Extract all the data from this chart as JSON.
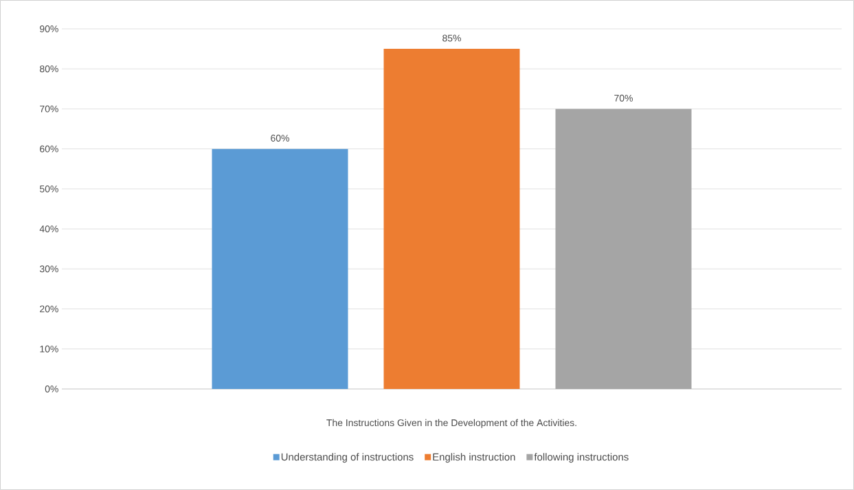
{
  "chart_data": {
    "type": "bar",
    "categories": [
      null
    ],
    "xlabel": "The Instructions Given in the Development of the Activities.",
    "series": [
      {
        "name": "Understanding of instructions",
        "color": "#5b9bd5",
        "values": [
          60
        ],
        "value_labels": [
          "60%"
        ]
      },
      {
        "name": "English instruction",
        "color": "#ed7d31",
        "values": [
          85
        ],
        "value_labels": [
          "85%"
        ]
      },
      {
        "name": "following instructions",
        "color": "#a5a5a5",
        "values": [
          70
        ],
        "value_labels": [
          "70%"
        ]
      }
    ],
    "ylim": [
      0,
      90
    ],
    "yticks": [
      {
        "value": 0,
        "label": "0%"
      },
      {
        "value": 10,
        "label": "10%"
      },
      {
        "value": 20,
        "label": "20%"
      },
      {
        "value": 30,
        "label": "30%"
      },
      {
        "value": 40,
        "label": "40%"
      },
      {
        "value": 50,
        "label": "50%"
      },
      {
        "value": 60,
        "label": "60%"
      },
      {
        "value": 70,
        "label": "70%"
      },
      {
        "value": 80,
        "label": "80%"
      },
      {
        "value": 90,
        "label": "90%"
      }
    ],
    "grid": "y",
    "legend": "bottom"
  }
}
